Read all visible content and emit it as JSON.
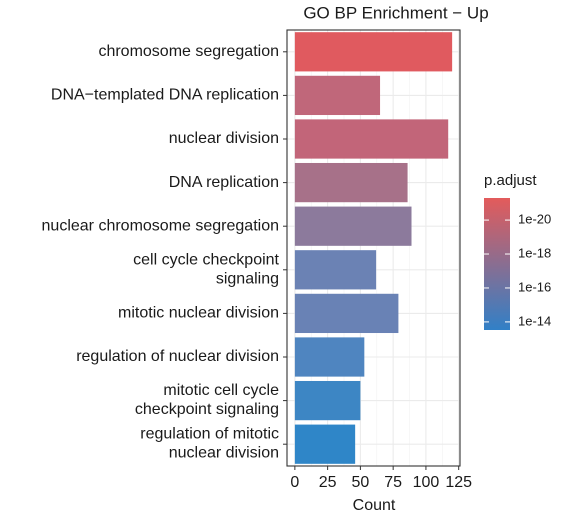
{
  "chart_data": {
    "type": "barh",
    "title": "GO BP Enrichment − Up",
    "categories": [
      "chromosome segregation",
      "DNA−templated DNA replication",
      "nuclear division",
      "DNA replication",
      "nuclear chromosome segregation",
      "cell cycle checkpoint\nsignaling",
      "mitotic nuclear division",
      "regulation of nuclear division",
      "mitotic cell cycle\ncheckpoint signaling",
      "regulation of mitotic\nnuclear division"
    ],
    "values": [
      120,
      65,
      117,
      86,
      89,
      62,
      79,
      53,
      50,
      46
    ],
    "colors": [
      "#e05a5f",
      "#c0677a",
      "#c26579",
      "#a77189",
      "#8c7a9c",
      "#6b82b4",
      "#6982b5",
      "#4f85c0",
      "#3d86c4",
      "#2f86c8"
    ],
    "xlabel": "Count",
    "xlim": [
      -6,
      126
    ],
    "xticks": [
      0,
      25,
      50,
      75,
      100,
      125
    ],
    "grid": true,
    "legend": {
      "title": "p.adjust",
      "log": true,
      "clim": [
        5e-22,
        3e-14
      ],
      "colors": [
        "#e35b5b",
        "#3180c7"
      ],
      "ticks": [
        {
          "value": 1e-20,
          "label": "1e-20"
        },
        {
          "value": 1e-18,
          "label": "1e-18"
        },
        {
          "value": 1e-16,
          "label": "1e-16"
        },
        {
          "value": 1e-14,
          "label": "1e-14"
        }
      ]
    }
  }
}
